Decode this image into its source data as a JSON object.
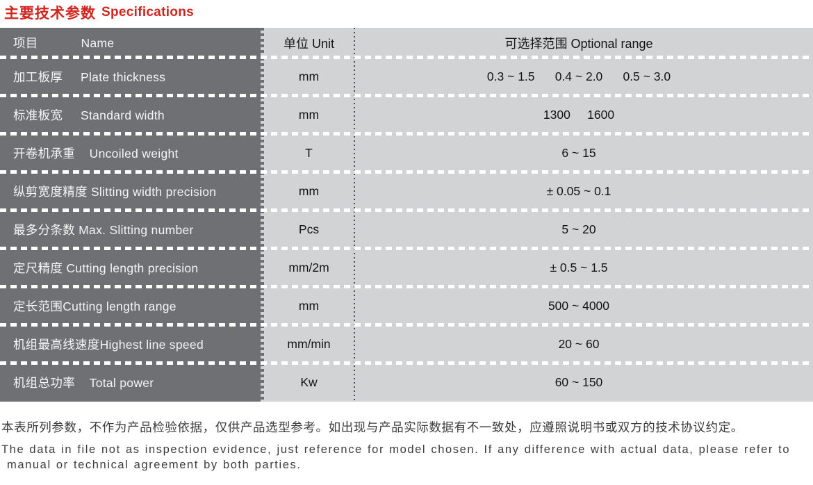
{
  "title": {
    "cn": "主要技术参数",
    "en": "Specifications"
  },
  "colors": {
    "accent_red": "#d2251e",
    "name_column_dark_gray": "#6e7074",
    "value_cell_light_gray": "#d2d3d5"
  },
  "table": {
    "header": {
      "name": "项目            Name",
      "unit": "单位 Unit",
      "range": "可选择范围 Optional range"
    },
    "rows": [
      {
        "name": "加工板厚     Plate thickness",
        "unit": "mm",
        "range": "0.3 ~ 1.5      0.4 ~ 2.0      0.5 ~ 3.0"
      },
      {
        "name": "标准板宽     Standard width",
        "unit": "mm",
        "range": "1300     1600"
      },
      {
        "name": "开卷机承重    Uncoiled weight",
        "unit": "T",
        "range": "6 ~ 15"
      },
      {
        "name": "纵剪宽度精度 Slitting width precision",
        "unit": "mm",
        "range": "± 0.05 ~ 0.1"
      },
      {
        "name": "最多分条数 Max. Slitting number",
        "unit": "Pcs",
        "range": "5 ~ 20"
      },
      {
        "name": "定尺精度 Cutting length precision",
        "unit": "mm/2m",
        "range": "± 0.5 ~ 1.5"
      },
      {
        "name": "定长范围Cutting length range",
        "unit": "mm",
        "range": "500 ~ 4000"
      },
      {
        "name": "机组最高线速度Highest line speed",
        "unit": "mm/min",
        "range": "20 ~ 60"
      },
      {
        "name": "机组总功率    Total power",
        "unit": "Kw",
        "range": "60 ~ 150"
      }
    ]
  },
  "footer": {
    "cn": "本表所列参数，不作为产品检验依据，仅供产品选型参考。如出现与产品实际数据有不一致处，应遵照说明书或双方的技术协议约定。",
    "en_line1": "The data in file not as inspection evidence, just reference for model chosen. If any difference with actual data, please refer to",
    "en_line2": "manual or technical agreement by both parties."
  }
}
